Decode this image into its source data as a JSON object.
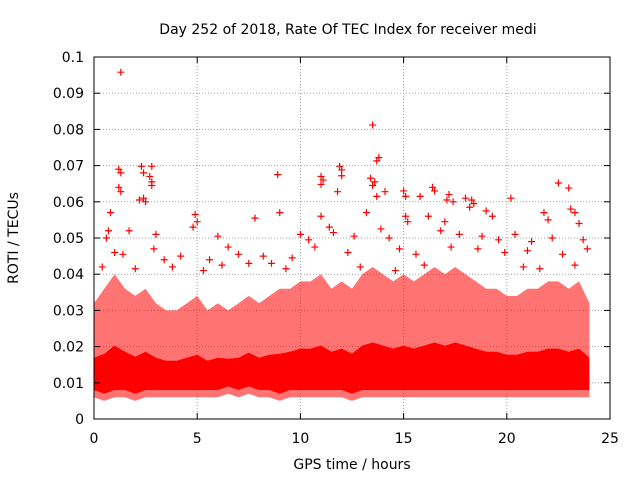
{
  "chart_data": {
    "type": "scatter",
    "title": "Day 252 of 2018, Rate Of TEC Index for receiver medi",
    "xlabel": "GPS time / hours",
    "ylabel": "ROTI / TECUs",
    "xlim": [
      0,
      25
    ],
    "ylim": [
      0,
      0.1
    ],
    "x_ticks": [
      "0",
      "5",
      "10",
      "15",
      "20",
      "25"
    ],
    "y_ticks": [
      "0",
      "0.01",
      "0.02",
      "0.03",
      "0.04",
      "0.05",
      "0.06",
      "0.07",
      "0.08",
      "0.09",
      "0.1"
    ],
    "grid": true,
    "marker": "+",
    "color": "#ff0000",
    "series": [
      {
        "points": [
          [
            1.3,
            0.0958
          ],
          [
            13.5,
            0.0812
          ],
          [
            13.8,
            0.0722
          ],
          [
            13.7,
            0.0713
          ],
          [
            1.2,
            0.069
          ],
          [
            1.3,
            0.068
          ],
          [
            2.3,
            0.0698
          ],
          [
            2.8,
            0.0698
          ],
          [
            2.4,
            0.068
          ],
          [
            2.7,
            0.067
          ],
          [
            2.8,
            0.0655
          ],
          [
            1.2,
            0.064
          ],
          [
            1.3,
            0.0628
          ],
          [
            2.8,
            0.0645
          ],
          [
            11.0,
            0.067
          ],
          [
            11.1,
            0.066
          ],
          [
            11.0,
            0.0648
          ],
          [
            11.9,
            0.0698
          ],
          [
            12.0,
            0.0688
          ],
          [
            12.0,
            0.0672
          ],
          [
            11.8,
            0.0628
          ],
          [
            13.4,
            0.0665
          ],
          [
            13.5,
            0.0645
          ],
          [
            13.6,
            0.0655
          ],
          [
            8.9,
            0.0675
          ],
          [
            22.5,
            0.0652
          ],
          [
            23.0,
            0.0638
          ],
          [
            2.2,
            0.0605
          ],
          [
            2.4,
            0.061
          ],
          [
            2.5,
            0.06
          ],
          [
            16.4,
            0.064
          ],
          [
            16.5,
            0.063
          ],
          [
            15.0,
            0.063
          ],
          [
            15.1,
            0.0615
          ],
          [
            17.2,
            0.062
          ],
          [
            17.4,
            0.06
          ],
          [
            17.1,
            0.0605
          ],
          [
            18.0,
            0.061
          ],
          [
            18.3,
            0.0605
          ],
          [
            20.2,
            0.061
          ],
          [
            13.7,
            0.0615
          ],
          [
            14.1,
            0.0628
          ],
          [
            18.4,
            0.0595
          ],
          [
            18.2,
            0.0585
          ],
          [
            15.8,
            0.0615
          ],
          [
            23.1,
            0.058
          ],
          [
            23.3,
            0.057
          ],
          [
            0.8,
            0.057
          ],
          [
            4.9,
            0.0565
          ],
          [
            5.0,
            0.0545
          ],
          [
            4.8,
            0.053
          ],
          [
            9.0,
            0.057
          ],
          [
            7.8,
            0.0555
          ],
          [
            11.0,
            0.056
          ],
          [
            13.2,
            0.057
          ],
          [
            15.1,
            0.056
          ],
          [
            15.2,
            0.0545
          ],
          [
            16.2,
            0.056
          ],
          [
            17.0,
            0.0545
          ],
          [
            19.0,
            0.0575
          ],
          [
            19.3,
            0.056
          ],
          [
            21.8,
            0.057
          ],
          [
            22.0,
            0.055
          ],
          [
            23.5,
            0.054
          ],
          [
            0.7,
            0.052
          ],
          [
            0.6,
            0.05
          ],
          [
            1.7,
            0.052
          ],
          [
            3.0,
            0.051
          ],
          [
            6.0,
            0.0505
          ],
          [
            6.5,
            0.0475
          ],
          [
            10.0,
            0.051
          ],
          [
            10.4,
            0.0495
          ],
          [
            11.4,
            0.053
          ],
          [
            11.6,
            0.0515
          ],
          [
            12.6,
            0.0505
          ],
          [
            13.9,
            0.0525
          ],
          [
            14.3,
            0.05
          ],
          [
            16.8,
            0.052
          ],
          [
            17.7,
            0.051
          ],
          [
            18.8,
            0.0505
          ],
          [
            19.6,
            0.0495
          ],
          [
            20.4,
            0.051
          ],
          [
            21.2,
            0.049
          ],
          [
            22.2,
            0.05
          ],
          [
            23.7,
            0.0495
          ],
          [
            1.0,
            0.046
          ],
          [
            1.4,
            0.0455
          ],
          [
            2.9,
            0.047
          ],
          [
            3.4,
            0.044
          ],
          [
            4.2,
            0.045
          ],
          [
            5.6,
            0.044
          ],
          [
            7.0,
            0.0455
          ],
          [
            7.5,
            0.043
          ],
          [
            8.2,
            0.045
          ],
          [
            8.6,
            0.043
          ],
          [
            9.6,
            0.0445
          ],
          [
            10.7,
            0.0475
          ],
          [
            12.3,
            0.046
          ],
          [
            14.8,
            0.047
          ],
          [
            15.6,
            0.0455
          ],
          [
            17.3,
            0.0475
          ],
          [
            18.6,
            0.047
          ],
          [
            19.9,
            0.046
          ],
          [
            21.0,
            0.0465
          ],
          [
            22.7,
            0.0455
          ],
          [
            23.9,
            0.047
          ],
          [
            0.4,
            0.042
          ],
          [
            2.0,
            0.0415
          ],
          [
            3.8,
            0.042
          ],
          [
            5.3,
            0.041
          ],
          [
            6.2,
            0.0425
          ],
          [
            9.3,
            0.0415
          ],
          [
            12.9,
            0.042
          ],
          [
            14.6,
            0.041
          ],
          [
            16.0,
            0.0425
          ],
          [
            20.8,
            0.042
          ],
          [
            21.6,
            0.0415
          ],
          [
            23.3,
            0.0425
          ]
        ]
      }
    ],
    "band": [
      [
        0.0,
        0.006,
        0.032
      ],
      [
        0.5,
        0.005,
        0.036
      ],
      [
        1.0,
        0.006,
        0.04
      ],
      [
        1.5,
        0.006,
        0.036
      ],
      [
        2.0,
        0.005,
        0.034
      ],
      [
        2.5,
        0.006,
        0.036
      ],
      [
        3.0,
        0.006,
        0.032
      ],
      [
        3.5,
        0.006,
        0.03
      ],
      [
        4.0,
        0.006,
        0.03
      ],
      [
        4.5,
        0.006,
        0.032
      ],
      [
        5.0,
        0.006,
        0.034
      ],
      [
        5.5,
        0.006,
        0.03
      ],
      [
        6.0,
        0.006,
        0.032
      ],
      [
        6.5,
        0.007,
        0.03
      ],
      [
        7.0,
        0.006,
        0.032
      ],
      [
        7.5,
        0.007,
        0.034
      ],
      [
        8.0,
        0.006,
        0.032
      ],
      [
        8.5,
        0.006,
        0.034
      ],
      [
        9.0,
        0.005,
        0.036
      ],
      [
        9.5,
        0.006,
        0.036
      ],
      [
        10.0,
        0.006,
        0.038
      ],
      [
        10.5,
        0.006,
        0.038
      ],
      [
        11.0,
        0.006,
        0.04
      ],
      [
        11.5,
        0.006,
        0.036
      ],
      [
        12.0,
        0.006,
        0.038
      ],
      [
        12.5,
        0.005,
        0.036
      ],
      [
        13.0,
        0.006,
        0.04
      ],
      [
        13.5,
        0.006,
        0.042
      ],
      [
        14.0,
        0.006,
        0.04
      ],
      [
        14.5,
        0.006,
        0.038
      ],
      [
        15.0,
        0.006,
        0.04
      ],
      [
        15.5,
        0.006,
        0.038
      ],
      [
        16.0,
        0.006,
        0.04
      ],
      [
        16.5,
        0.006,
        0.042
      ],
      [
        17.0,
        0.006,
        0.04
      ],
      [
        17.5,
        0.006,
        0.042
      ],
      [
        18.0,
        0.006,
        0.04
      ],
      [
        18.5,
        0.006,
        0.038
      ],
      [
        19.0,
        0.006,
        0.036
      ],
      [
        19.5,
        0.006,
        0.036
      ],
      [
        20.0,
        0.006,
        0.034
      ],
      [
        20.5,
        0.006,
        0.034
      ],
      [
        21.0,
        0.006,
        0.036
      ],
      [
        21.5,
        0.006,
        0.036
      ],
      [
        22.0,
        0.006,
        0.038
      ],
      [
        22.5,
        0.006,
        0.038
      ],
      [
        23.0,
        0.006,
        0.036
      ],
      [
        23.5,
        0.006,
        0.038
      ],
      [
        24.0,
        0.006,
        0.032
      ]
    ]
  }
}
